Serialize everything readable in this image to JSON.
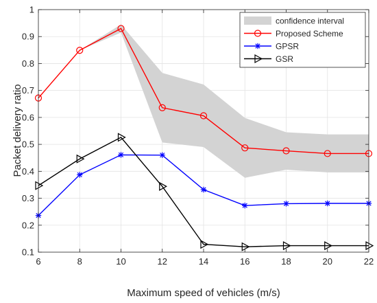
{
  "chart_data": {
    "type": "line",
    "xlabel": "Maximum speed of vehicles (m/s)",
    "ylabel": "Packet delivery ratio",
    "xlim": [
      6,
      22
    ],
    "ylim": [
      0.1,
      1.0
    ],
    "grid": true,
    "legend_position": "top-right",
    "x": [
      6,
      8,
      10,
      12,
      14,
      16,
      18,
      20,
      22
    ],
    "x_ticks": [
      "6",
      "8",
      "10",
      "12",
      "14",
      "16",
      "18",
      "20",
      "22"
    ],
    "y_ticks": [
      "0.1",
      "0.2",
      "0.3",
      "0.4",
      "0.5",
      "0.6",
      "0.7",
      "0.8",
      "0.9",
      "1"
    ],
    "confidence_interval": {
      "name": "confidence interval",
      "color": "#d3d3d3",
      "upper": [
        0.672,
        0.849,
        0.945,
        0.765,
        0.722,
        0.598,
        0.545,
        0.537,
        0.537
      ],
      "lower": [
        0.672,
        0.849,
        0.915,
        0.507,
        0.49,
        0.376,
        0.406,
        0.396,
        0.396
      ]
    },
    "series": [
      {
        "name": "Proposed Scheme",
        "color": "#ff0000",
        "marker": "circle",
        "values": [
          0.672,
          0.849,
          0.93,
          0.636,
          0.606,
          0.487,
          0.476,
          0.466,
          0.466
        ]
      },
      {
        "name": "GPSR",
        "color": "#0000ff",
        "marker": "asterisk",
        "values": [
          0.236,
          0.387,
          0.461,
          0.46,
          0.332,
          0.273,
          0.28,
          0.281,
          0.281
        ]
      },
      {
        "name": "GSR",
        "color": "#000000",
        "marker": "triangle-right",
        "values": [
          0.347,
          0.446,
          0.526,
          0.344,
          0.129,
          0.12,
          0.124,
          0.124,
          0.124
        ]
      }
    ]
  }
}
